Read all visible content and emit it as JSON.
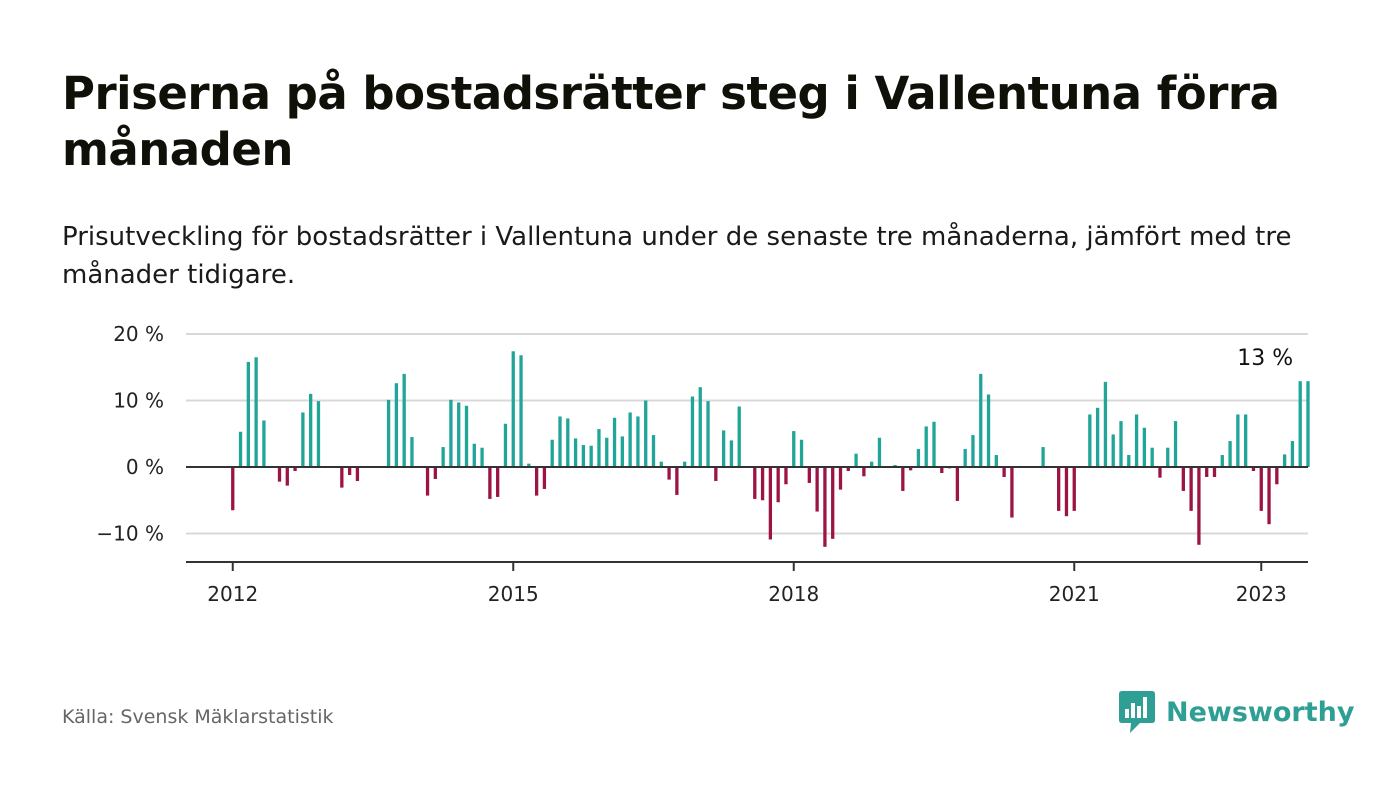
{
  "title": "Priserna på bostadsrätter steg i Vallentuna förra månaden",
  "subtitle": "Prisutveckling för bostadsrätter i Vallentuna under de senaste tre månaderna, jämfört med tre månader tidigare.",
  "source": "Källa: Svensk Mäklarstatistik",
  "brand": {
    "name": "Newsworthy",
    "icon": "newsworthy-logo-icon",
    "color": "#2f9e95"
  },
  "colors": {
    "positive": "#20a598",
    "negative": "#9c1444",
    "grid": "#d8d8d8",
    "axis": "#333333"
  },
  "chart_data": {
    "type": "bar",
    "title": "Priserna på bostadsrätter steg i Vallentuna förra månaden",
    "xlabel": "",
    "ylabel": "",
    "ylim": [
      -14,
      20
    ],
    "yticks": [
      {
        "value": 20,
        "label": "20 %"
      },
      {
        "value": 10,
        "label": "10 %"
      },
      {
        "value": 0,
        "label": "0 %"
      },
      {
        "value": -10,
        "label": "−10 %"
      }
    ],
    "xticks": [
      {
        "value": "2012-01",
        "label": "2012"
      },
      {
        "value": "2015-01",
        "label": "2015"
      },
      {
        "value": "2018-01",
        "label": "2018"
      },
      {
        "value": "2021-01",
        "label": "2021"
      },
      {
        "value": "2023-01",
        "label": "2023"
      }
    ],
    "x_range": [
      "2011-07",
      "2023-07"
    ],
    "start_month": "2012-01",
    "grid": true,
    "legend": "none",
    "annotation": {
      "x": "2023-01",
      "label": "13 %"
    },
    "values": [
      -6.5,
      5.3,
      15.8,
      16.5,
      7.0,
      null,
      -2.2,
      -2.8,
      -0.6,
      8.2,
      11.0,
      9.9,
      null,
      null,
      -3.1,
      -1.2,
      -2.1,
      null,
      null,
      null,
      10.1,
      12.6,
      14.0,
      4.5,
      null,
      -4.3,
      -1.8,
      3.0,
      10.1,
      9.7,
      9.2,
      3.5,
      2.9,
      -4.8,
      -4.5,
      6.5,
      17.4,
      16.8,
      0.5,
      -4.3,
      -3.3,
      4.1,
      7.6,
      7.3,
      4.3,
      3.3,
      3.2,
      5.7,
      4.4,
      7.4,
      4.6,
      8.2,
      7.6,
      10.0,
      4.8,
      0.8,
      -1.9,
      -4.2,
      0.8,
      10.6,
      12.0,
      9.9,
      -2.1,
      5.5,
      4.0,
      9.1,
      null,
      -4.8,
      -5.0,
      -10.9,
      -5.3,
      -2.6,
      5.4,
      4.1,
      -2.4,
      -6.7,
      -12.0,
      -10.8,
      -3.4,
      -0.6,
      2.0,
      -1.4,
      0.8,
      4.4,
      null,
      0.3,
      -3.6,
      -0.5,
      2.7,
      6.1,
      6.8,
      -0.9,
      -0.2,
      -5.1,
      2.7,
      4.8,
      14.0,
      10.9,
      1.8,
      -1.5,
      -7.6,
      null,
      null,
      null,
      3.0,
      null,
      -6.6,
      -7.4,
      -6.6,
      null,
      7.9,
      8.9,
      12.8,
      4.9,
      6.9,
      1.8,
      7.9,
      5.9,
      2.9,
      -1.6,
      2.9,
      6.9,
      -3.6,
      -6.6,
      -11.7,
      -1.5,
      -1.5,
      1.8,
      3.9,
      7.9,
      7.9,
      -0.6,
      -6.6,
      -8.6,
      -2.6,
      1.9,
      3.9,
      12.9,
      12.9
    ]
  }
}
